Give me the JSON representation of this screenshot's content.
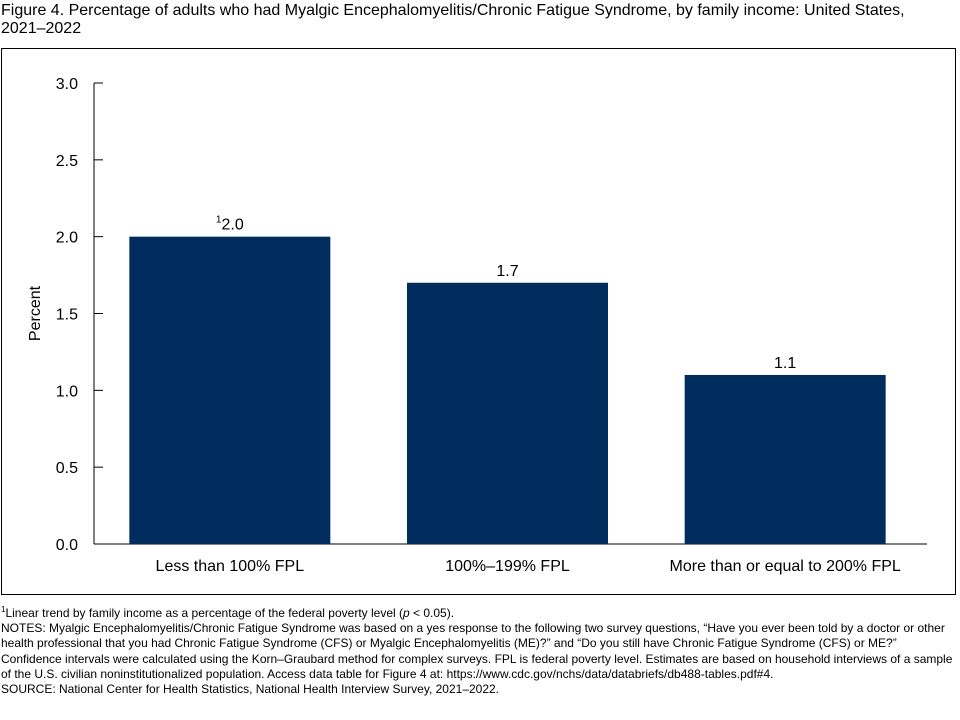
{
  "title": "Figure 4. Percentage of adults who had Myalgic Encephalomyelitis/Chronic Fatigue Syndrome, by family income: United States, 2021–2022",
  "chart_data": {
    "type": "bar",
    "categories": [
      "Less than 100% FPL",
      "100%–199% FPL",
      "More than or equal to 200% FPL"
    ],
    "values": [
      2.0,
      1.7,
      1.1
    ],
    "data_labels": [
      "2.0",
      "1.7",
      "1.1"
    ],
    "data_label_superscripts": [
      "1",
      "",
      ""
    ],
    "ylabel": "Percent",
    "ylim": [
      0,
      3.0
    ],
    "yticks": [
      "0.0",
      "0.5",
      "1.0",
      "1.5",
      "2.0",
      "2.5",
      "3.0"
    ],
    "bar_color": "#002D5E",
    "grid": false
  },
  "footnote": {
    "marker": "1",
    "text_before": "Linear trend by family income as a percentage of the federal poverty level (",
    "italic": "p",
    "text_after": " < 0.05)."
  },
  "notes": "NOTES: Myalgic Encephalomyelitis/Chronic Fatigue Syndrome was based on a yes response to the following two survey questions, “Have you ever been told by a doctor or other health professional that you had Chronic Fatigue Syndrome (CFS) or Myalgic Encephalomyelitis (ME)?” and “Do you still have Chronic Fatigue Syndrome (CFS) or ME?” Confidence intervals were calculated using the Korn–Graubard method for complex surveys. FPL is federal poverty level. Estimates are based on household interviews of a sample of the U.S. civilian noninstitutionalized population. Access data table for Figure 4 at: https://www.cdc.gov/nchs/data/databriefs/db488-tables.pdf#4.",
  "source": "SOURCE: National Center for Health Statistics, National Health Interview Survey, 2021–2022."
}
